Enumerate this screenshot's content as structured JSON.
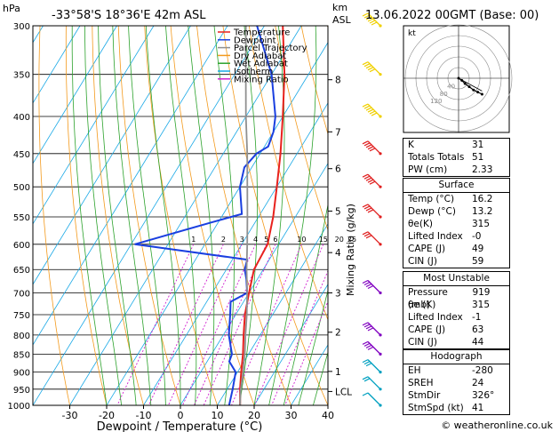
{
  "header": {
    "pressure_unit": "hPa",
    "location": "-33°58'S  18°36'E  42m  ASL",
    "km_unit": "km",
    "asl": "ASL",
    "datetime": "13.06.2022  00GMT  (Base: 00)"
  },
  "footer": {
    "credit": "© weatheronline.co.uk"
  },
  "chart_data": {
    "type": "line",
    "subtype": "skew-T log-P diagram",
    "xlabel": "Dewpoint / Temperature (°C)",
    "ylabel": "",
    "mixing_ratio_label": "Mixing Ratio (g/kg)",
    "x_ticks": [
      -30,
      -20,
      -10,
      0,
      10,
      20,
      30,
      40
    ],
    "xlim": [
      -40,
      40
    ],
    "pressure_levels": [
      300,
      350,
      400,
      450,
      500,
      550,
      600,
      650,
      700,
      750,
      800,
      850,
      900,
      950,
      1000
    ],
    "ylim": [
      1000,
      300
    ],
    "y_scale": "log",
    "km_ticks": [
      {
        "label": "8",
        "p": 356
      },
      {
        "label": "7",
        "p": 420
      },
      {
        "label": "6",
        "p": 472
      },
      {
        "label": "5",
        "p": 540
      },
      {
        "label": "4",
        "p": 616
      },
      {
        "label": "3",
        "p": 700
      },
      {
        "label": "2",
        "p": 793
      },
      {
        "label": "1",
        "p": 898
      },
      {
        "label": "LCL",
        "p": 957
      }
    ],
    "mixing_ratio_ticks": [
      "1",
      "2",
      "3",
      "4",
      "5",
      "6",
      "10",
      "15",
      "20",
      "25"
    ],
    "mixing_ratio_values": [
      1,
      2,
      3,
      4,
      5,
      6,
      10,
      15,
      20,
      25
    ],
    "legend": [
      {
        "name": "Temperature",
        "color": "#e8211d"
      },
      {
        "name": "Dewpoint",
        "color": "#1a3fe0"
      },
      {
        "name": "Parcel Trajectory",
        "color": "#909090"
      },
      {
        "name": "Dry Adiabat",
        "color": "#f39a1d"
      },
      {
        "name": "Wet Adiabat",
        "color": "#2ca22c"
      },
      {
        "name": "Isotherm",
        "color": "#19a8e6"
      },
      {
        "name": "Mixing Ratio",
        "color": "#d020d0"
      }
    ],
    "series": [
      {
        "name": "Temperature",
        "color": "#e8211d",
        "points": [
          [
            1000,
            16.2
          ],
          [
            950,
            13.5
          ],
          [
            900,
            11
          ],
          [
            850,
            8.5
          ],
          [
            800,
            5.5
          ],
          [
            750,
            2.5
          ],
          [
            700,
            0
          ],
          [
            650,
            -2.5
          ],
          [
            600,
            -3
          ],
          [
            550,
            -6
          ],
          [
            500,
            -10
          ],
          [
            450,
            -14.5
          ],
          [
            400,
            -20
          ],
          [
            350,
            -26.5
          ],
          [
            300,
            -35
          ]
        ]
      },
      {
        "name": "Dewpoint",
        "color": "#1a3fe0",
        "points": [
          [
            1000,
            13.2
          ],
          [
            950,
            11.5
          ],
          [
            900,
            9.5
          ],
          [
            870,
            6
          ],
          [
            850,
            5.5
          ],
          [
            800,
            1.5
          ],
          [
            750,
            -1.5
          ],
          [
            720,
            -3.5
          ],
          [
            700,
            -0.5
          ],
          [
            670,
            -3
          ],
          [
            650,
            -5
          ],
          [
            630,
            -6
          ],
          [
            600,
            -39
          ],
          [
            560,
            -22
          ],
          [
            545,
            -15
          ],
          [
            500,
            -20
          ],
          [
            470,
            -22
          ],
          [
            450,
            -21
          ],
          [
            440,
            -19
          ],
          [
            420,
            -20
          ],
          [
            400,
            -22
          ],
          [
            350,
            -30
          ],
          [
            300,
            -42
          ]
        ]
      },
      {
        "name": "Parcel Trajectory",
        "color": "#909090",
        "points": [
          [
            1000,
            16.2
          ],
          [
            957,
            14
          ],
          [
            900,
            11.5
          ],
          [
            850,
            9
          ],
          [
            800,
            6
          ],
          [
            750,
            3
          ],
          [
            700,
            -0.5
          ],
          [
            650,
            -4.5
          ],
          [
            600,
            -8.5
          ],
          [
            550,
            -13
          ],
          [
            500,
            -18
          ],
          [
            450,
            -23.5
          ],
          [
            400,
            -30
          ],
          [
            350,
            -37
          ],
          [
            300,
            -45
          ]
        ]
      }
    ],
    "wind_barbs": [
      {
        "p": 300,
        "kt": 55
      },
      {
        "p": 350,
        "kt": 50
      },
      {
        "p": 400,
        "kt": 60
      },
      {
        "p": 450,
        "kt": 50
      },
      {
        "p": 500,
        "kt": 45
      },
      {
        "p": 550,
        "kt": 35
      },
      {
        "p": 600,
        "kt": 30
      },
      {
        "p": 700,
        "kt": 40
      },
      {
        "p": 800,
        "kt": 35
      },
      {
        "p": 850,
        "kt": 40
      },
      {
        "p": 900,
        "kt": 30
      },
      {
        "p": 950,
        "kt": 20
      },
      {
        "p": 1000,
        "kt": 10
      }
    ],
    "hodograph": {
      "unit_label": "kt",
      "ring_labels": [
        "40",
        "80",
        "120"
      ],
      "trace_kt": [
        [
          0,
          0
        ],
        [
          3,
          -2
        ],
        [
          6,
          -5
        ],
        [
          10,
          -8
        ],
        [
          14,
          -11
        ],
        [
          18,
          -13
        ],
        [
          22,
          -15
        ]
      ]
    }
  },
  "indices": {
    "rows": [
      {
        "label": "K",
        "value": "31"
      },
      {
        "label": "Totals Totals",
        "value": "51"
      },
      {
        "label": "PW (cm)",
        "value": "2.33"
      }
    ]
  },
  "surface": {
    "title": "Surface",
    "rows": [
      {
        "label": "Temp (°C)",
        "value": "16.2"
      },
      {
        "label": "Dewp (°C)",
        "value": "13.2"
      },
      {
        "label": "θe(K)",
        "value": "315"
      },
      {
        "label": "Lifted Index",
        "value": "-0"
      },
      {
        "label": "CAPE (J)",
        "value": "49"
      },
      {
        "label": "CIN (J)",
        "value": "59"
      }
    ]
  },
  "most_unstable": {
    "title": "Most Unstable",
    "rows": [
      {
        "label": "Pressure (mb)",
        "value": "919"
      },
      {
        "label": "θe (K)",
        "value": "315"
      },
      {
        "label": "Lifted Index",
        "value": "-1"
      },
      {
        "label": "CAPE (J)",
        "value": "63"
      },
      {
        "label": "CIN (J)",
        "value": "44"
      }
    ]
  },
  "hodograph_table": {
    "title": "Hodograph",
    "rows": [
      {
        "label": "EH",
        "value": "-280"
      },
      {
        "label": "SREH",
        "value": "24"
      },
      {
        "label": "StmDir",
        "value": "326°"
      },
      {
        "label": "StmSpd (kt)",
        "value": "41"
      }
    ]
  }
}
